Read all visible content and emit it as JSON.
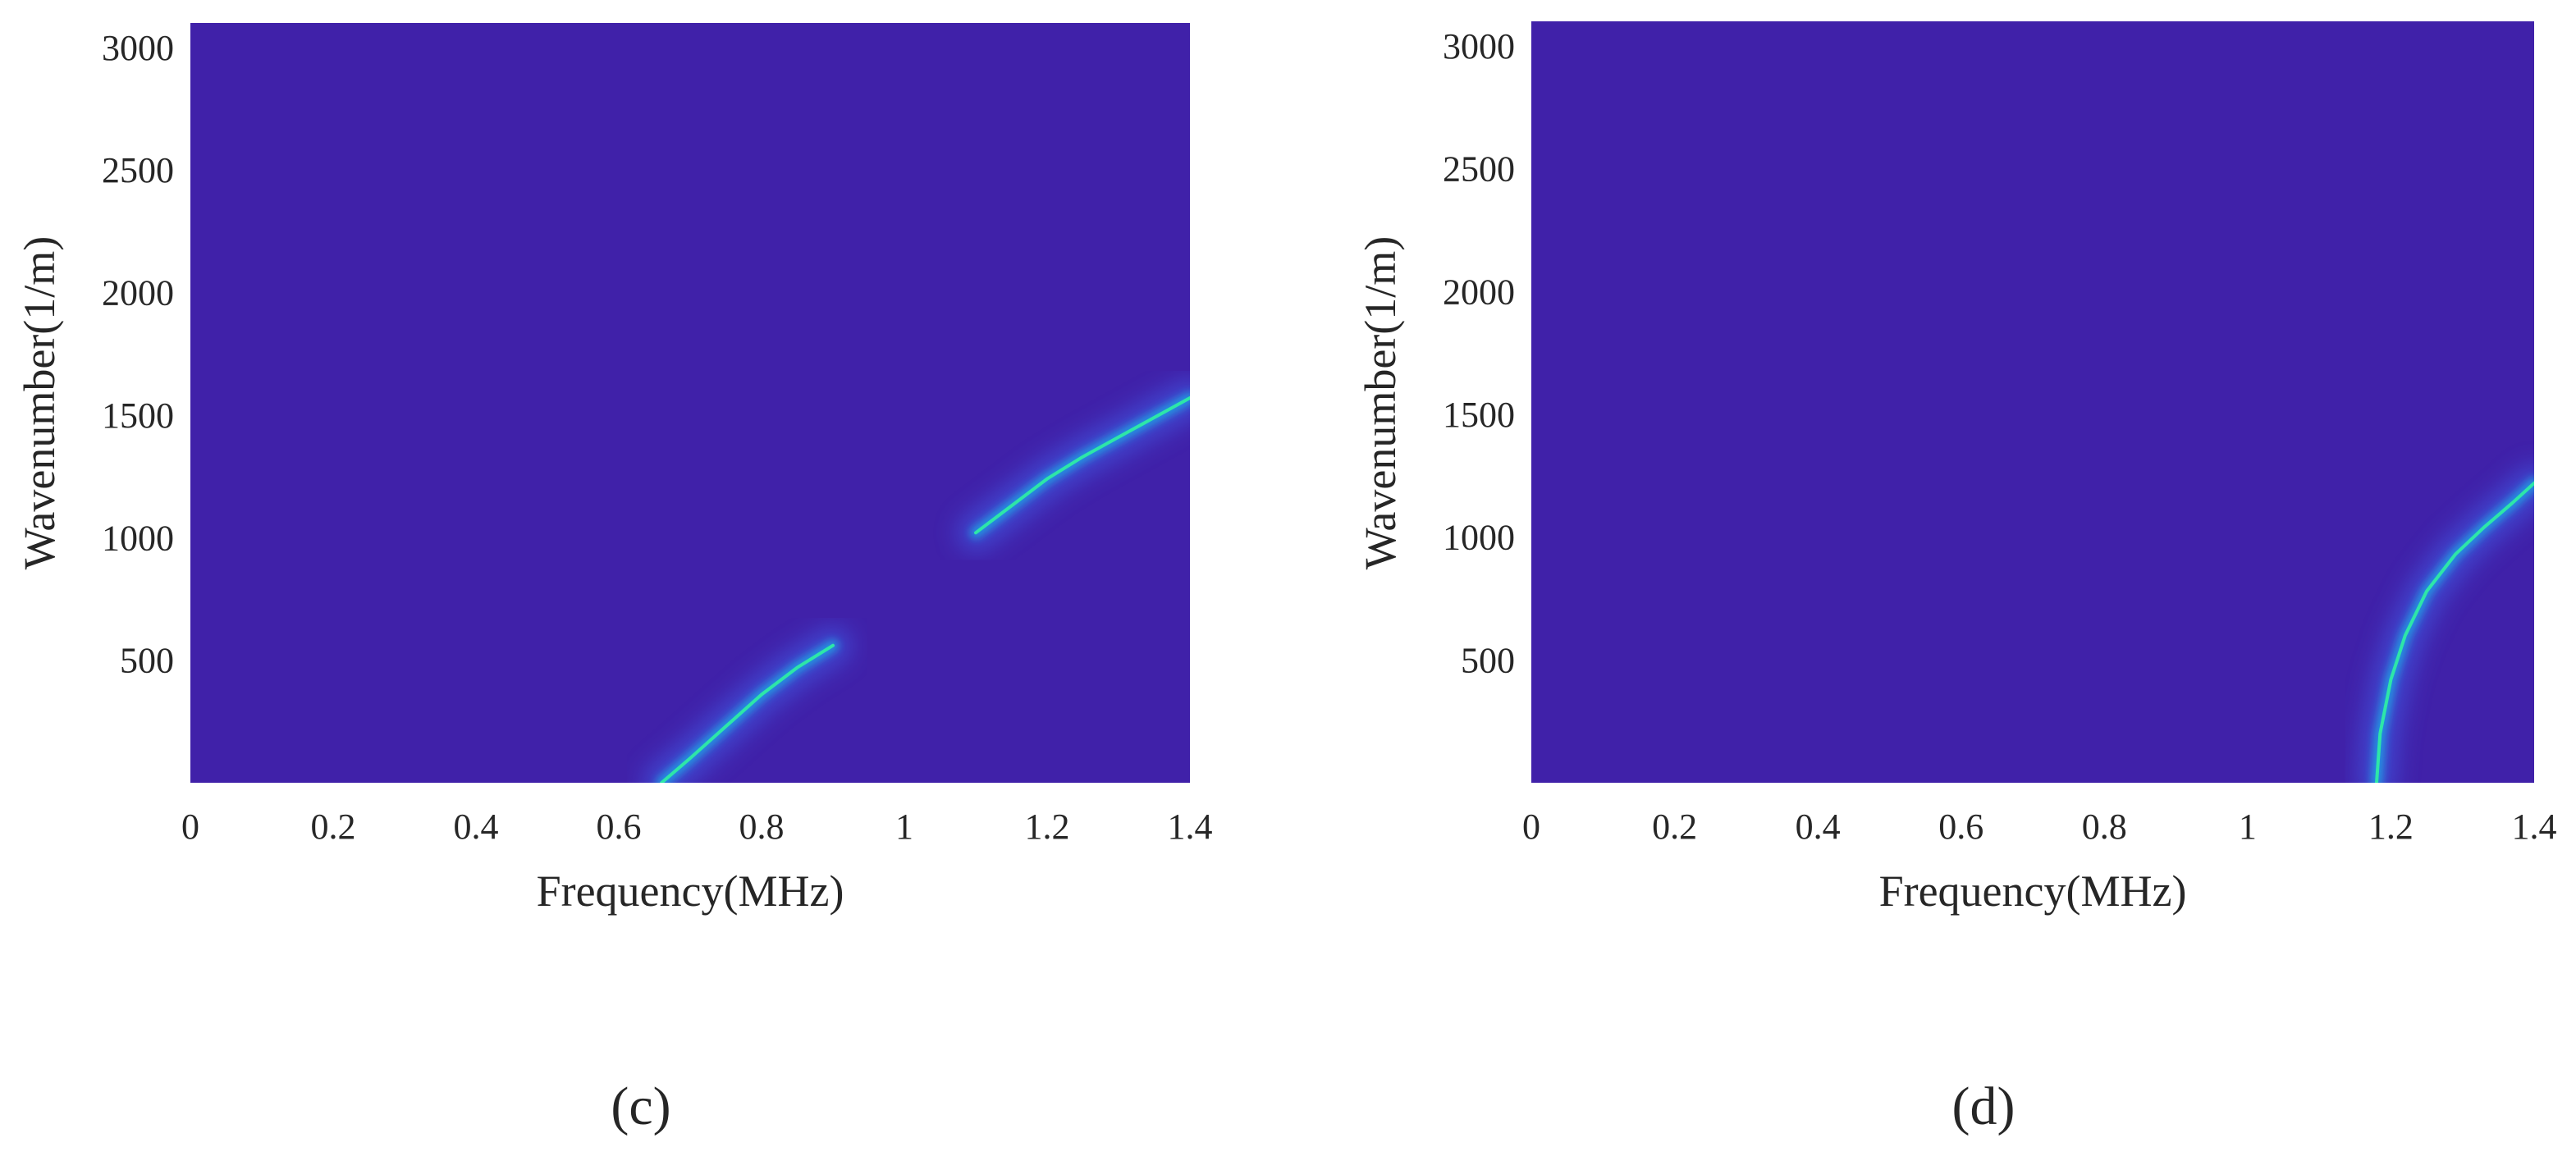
{
  "colors": {
    "background": "#4021a9",
    "ridge_low": "#3f63ee",
    "ridge_mid": "#1aa9e6",
    "ridge_peak": "#2ee6a8",
    "text": "#262626"
  },
  "chart_data": [
    {
      "type": "heatmap",
      "panel_label": "(c)",
      "xlabel": "Frequency(MHz)",
      "ylabel": "Wavenumber(1/m)",
      "xlim": [
        0,
        1.4
      ],
      "ylim": [
        0,
        3100
      ],
      "x_ticks": [
        0,
        0.2,
        0.4,
        0.6,
        0.8,
        1,
        1.2,
        1.4
      ],
      "x_tick_labels": [
        "0",
        "0.2",
        "0.4",
        "0.6",
        "0.8",
        "1",
        "1.2",
        "1.4"
      ],
      "y_ticks": [
        500,
        1000,
        1500,
        2000,
        2500,
        3000
      ],
      "y_tick_labels": [
        "500",
        "1000",
        "1500",
        "2000",
        "2500",
        "3000"
      ],
      "grid": false,
      "ridges": [
        {
          "x": [
            0.66,
            0.7,
            0.75,
            0.8,
            0.85,
            0.9
          ],
          "y": [
            0,
            100,
            230,
            360,
            470,
            560
          ]
        },
        {
          "x": [
            1.1,
            1.15,
            1.2,
            1.25,
            1.3,
            1.35,
            1.4
          ],
          "y": [
            1020,
            1130,
            1240,
            1330,
            1410,
            1490,
            1570
          ]
        }
      ]
    },
    {
      "type": "heatmap",
      "panel_label": "(d)",
      "xlabel": "Frequency(MHz)",
      "ylabel": "Wavenumber(1/m)",
      "xlim": [
        0,
        1.4
      ],
      "ylim": [
        0,
        3100
      ],
      "x_ticks": [
        0,
        0.2,
        0.4,
        0.6,
        0.8,
        1,
        1.2,
        1.4
      ],
      "x_tick_labels": [
        "0",
        "0.2",
        "0.4",
        "0.6",
        "0.8",
        "1",
        "1.2",
        "1.4"
      ],
      "y_ticks": [
        500,
        1000,
        1500,
        2000,
        2500,
        3000
      ],
      "y_tick_labels": [
        "500",
        "1000",
        "1500",
        "2000",
        "2500",
        "3000"
      ],
      "grid": false,
      "ridges": [
        {
          "x": [
            1.18,
            1.185,
            1.2,
            1.22,
            1.25,
            1.29,
            1.33,
            1.37,
            1.4
          ],
          "y": [
            0,
            200,
            420,
            600,
            780,
            930,
            1040,
            1140,
            1220
          ]
        }
      ]
    }
  ]
}
